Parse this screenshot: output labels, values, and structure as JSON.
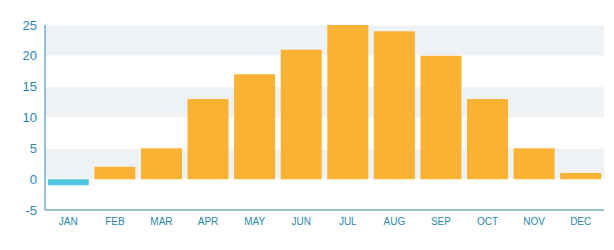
{
  "chart_data": {
    "type": "bar",
    "categories": [
      "JAN",
      "FEB",
      "MAR",
      "APR",
      "MAY",
      "JUN",
      "JUL",
      "AUG",
      "SEP",
      "OCT",
      "NOV",
      "DEC"
    ],
    "values": [
      -1,
      2,
      5,
      13,
      17,
      21,
      25,
      24,
      20,
      13,
      5,
      1
    ],
    "colors": [
      "#4ec3e0",
      "#f9b234",
      "#f9b234",
      "#f9b234",
      "#f9b234",
      "#f9b234",
      "#f9b234",
      "#f9b234",
      "#f9b234",
      "#f9b234",
      "#f9b234",
      "#f9b234"
    ],
    "ylim": [
      -5,
      25
    ],
    "yticks": [
      -5,
      0,
      5,
      10,
      15,
      20,
      25
    ],
    "grid": true
  }
}
